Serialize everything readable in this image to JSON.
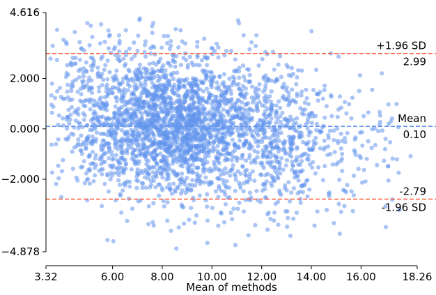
{
  "chart_data": {
    "type": "scatter",
    "title": "",
    "xlabel": "Mean of methods",
    "ylabel": "",
    "xlim": [
      3.32,
      18.26
    ],
    "ylim": [
      -4.878,
      4.616
    ],
    "x_ticks": [
      "3.32",
      "6.00",
      "8.00",
      "10.00",
      "12.00",
      "14.00",
      "16.00",
      "18.26"
    ],
    "x_tick_values": [
      3.32,
      6,
      8,
      10,
      12,
      14,
      16,
      18.26
    ],
    "y_ticks": [
      "4.616",
      "2.000",
      "0.000",
      "−2.000",
      "−4.878"
    ],
    "y_tick_values": [
      4.616,
      2,
      0,
      -2,
      -4.878
    ],
    "grid": false,
    "point_color": "#6495ed",
    "lines": [
      {
        "name": "upper_loa",
        "value": 2.99,
        "label_top": "+1.96 SD",
        "label_bottom": "2.99",
        "color": "#ff6347"
      },
      {
        "name": "mean",
        "value": 0.1,
        "label_top": "Mean",
        "label_bottom": "0.10",
        "color": "#6495ed"
      },
      {
        "name": "lower_loa",
        "value": -2.79,
        "label_top": "-2.79",
        "label_bottom": "-1.96 SD",
        "color": "#ff6347"
      }
    ],
    "distribution": {
      "n_points": 3000,
      "x_center": 8.4,
      "x_spread": 2.3,
      "x_min": 3.5,
      "x_max": 18.0,
      "y_mean": 0.1,
      "y_sd": 1.45,
      "y_slope": -0.12
    }
  }
}
